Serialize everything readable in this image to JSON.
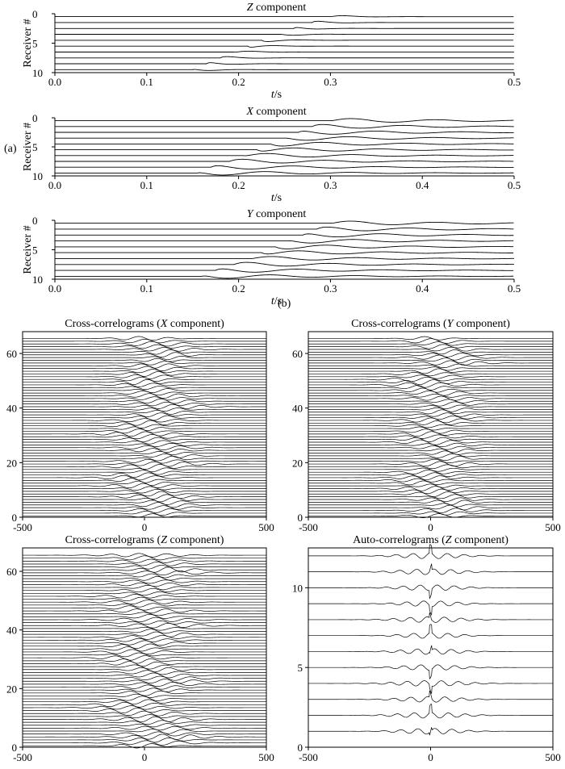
{
  "labels": {
    "a": "(a)",
    "b": "(b)"
  },
  "chart_data": [
    {
      "type": "line",
      "panel_label": "(a)",
      "title_italic": "Z",
      "title_rest": " component",
      "xlabel_italic": "t",
      "xlabel_rest": "/s",
      "ylabel": "Receiver #",
      "xlim": [
        0.0,
        0.5
      ],
      "ylim": [
        10,
        0
      ],
      "x_ticks": [
        "0.0",
        "0.1",
        "0.2",
        "0.3",
        "0.5"
      ],
      "x_tick_values": [
        0.0,
        0.1,
        0.2,
        0.3,
        0.5
      ],
      "y_ticks": [
        "0",
        "5",
        "10"
      ],
      "y_tick_values": [
        0,
        5,
        10
      ],
      "n_traces": 10,
      "onset_times_s": [
        0.3,
        0.28,
        0.26,
        0.245,
        0.225,
        0.21,
        0.195,
        0.18,
        0.165,
        0.15
      ],
      "amplitude": "small"
    },
    {
      "type": "line",
      "title_italic": "X",
      "title_rest": " component",
      "xlabel_italic": "t",
      "xlabel_rest": "/s",
      "ylabel": "Receiver #",
      "xlim": [
        0.0,
        0.5
      ],
      "ylim": [
        10,
        0
      ],
      "x_ticks": [
        "0.0",
        "0.1",
        "0.2",
        "0.3",
        "0.4",
        "0.5"
      ],
      "x_tick_values": [
        0.0,
        0.1,
        0.2,
        0.3,
        0.4,
        0.5
      ],
      "y_ticks": [
        "0",
        "5",
        "10"
      ],
      "y_tick_values": [
        0,
        5,
        10
      ],
      "n_traces": 10,
      "onset_times_s": [
        0.3,
        0.28,
        0.265,
        0.25,
        0.235,
        0.22,
        0.205,
        0.19,
        0.17,
        0.155
      ],
      "amplitude": "large"
    },
    {
      "type": "line",
      "title_italic": "Y",
      "title_rest": " component",
      "xlabel_italic": "t",
      "xlabel_rest": "/s",
      "ylabel": "Receiver #",
      "xlim": [
        0.0,
        0.5
      ],
      "ylim": [
        10,
        0
      ],
      "x_ticks": [
        "0.0",
        "0.1",
        "0.2",
        "0.3",
        "0.4",
        "0.5"
      ],
      "x_tick_values": [
        0.0,
        0.1,
        0.2,
        0.3,
        0.4,
        0.5
      ],
      "y_ticks": [
        "0",
        "5",
        "10"
      ],
      "y_tick_values": [
        0,
        5,
        10
      ],
      "n_traces": 10,
      "onset_times_s": [
        0.3,
        0.285,
        0.27,
        0.255,
        0.24,
        0.225,
        0.21,
        0.195,
        0.175,
        0.16
      ],
      "amplitude": "large"
    },
    {
      "type": "line",
      "panel_label": "(b)",
      "title_pre": "Cross-correlograms (",
      "title_italic": "X",
      "title_post": " component)",
      "xlim": [
        -500,
        500
      ],
      "ylim": [
        0,
        68
      ],
      "x_ticks": [
        "-500",
        "0",
        "500"
      ],
      "x_tick_values": [
        -500,
        0,
        500
      ],
      "y_ticks": [
        "0",
        "20",
        "40",
        "60"
      ],
      "y_tick_values": [
        0,
        20,
        40,
        60
      ],
      "n_traces": 66,
      "center_lag": 40,
      "spread": 80
    },
    {
      "type": "line",
      "title_pre": "Cross-correlograms (",
      "title_italic": "Y",
      "title_post": " component)",
      "xlim": [
        -500,
        500
      ],
      "ylim": [
        0,
        68
      ],
      "x_ticks": [
        "-500",
        "0",
        "500"
      ],
      "x_tick_values": [
        -500,
        0,
        500
      ],
      "y_ticks": [
        "0",
        "20",
        "40",
        "60"
      ],
      "y_tick_values": [
        0,
        20,
        40,
        60
      ],
      "n_traces": 66,
      "center_lag": 30,
      "spread": 70
    },
    {
      "type": "line",
      "title_pre": "Cross-correlograms (",
      "title_italic": "Z",
      "title_post": " component)",
      "xlim": [
        -500,
        500
      ],
      "ylim": [
        0,
        68
      ],
      "x_ticks": [
        "-500",
        "0",
        "500"
      ],
      "x_tick_values": [
        -500,
        0,
        500
      ],
      "y_ticks": [
        "0",
        "20",
        "40",
        "60"
      ],
      "y_tick_values": [
        0,
        20,
        40,
        60
      ],
      "n_traces": 66,
      "center_lag": 20,
      "spread": 90
    },
    {
      "type": "line",
      "title_pre": "Auto-correlograms (",
      "title_italic": "Z",
      "title_post": " component)",
      "xlim": [
        -500,
        500
      ],
      "ylim": [
        0,
        12.5
      ],
      "x_ticks": [
        "-500",
        "0",
        "500"
      ],
      "x_tick_values": [
        -500,
        0,
        500
      ],
      "y_ticks": [
        "0",
        "5",
        "10"
      ],
      "y_tick_values": [
        0,
        5,
        10
      ],
      "n_traces": 12,
      "center_lag": 0,
      "spread": 110
    }
  ]
}
